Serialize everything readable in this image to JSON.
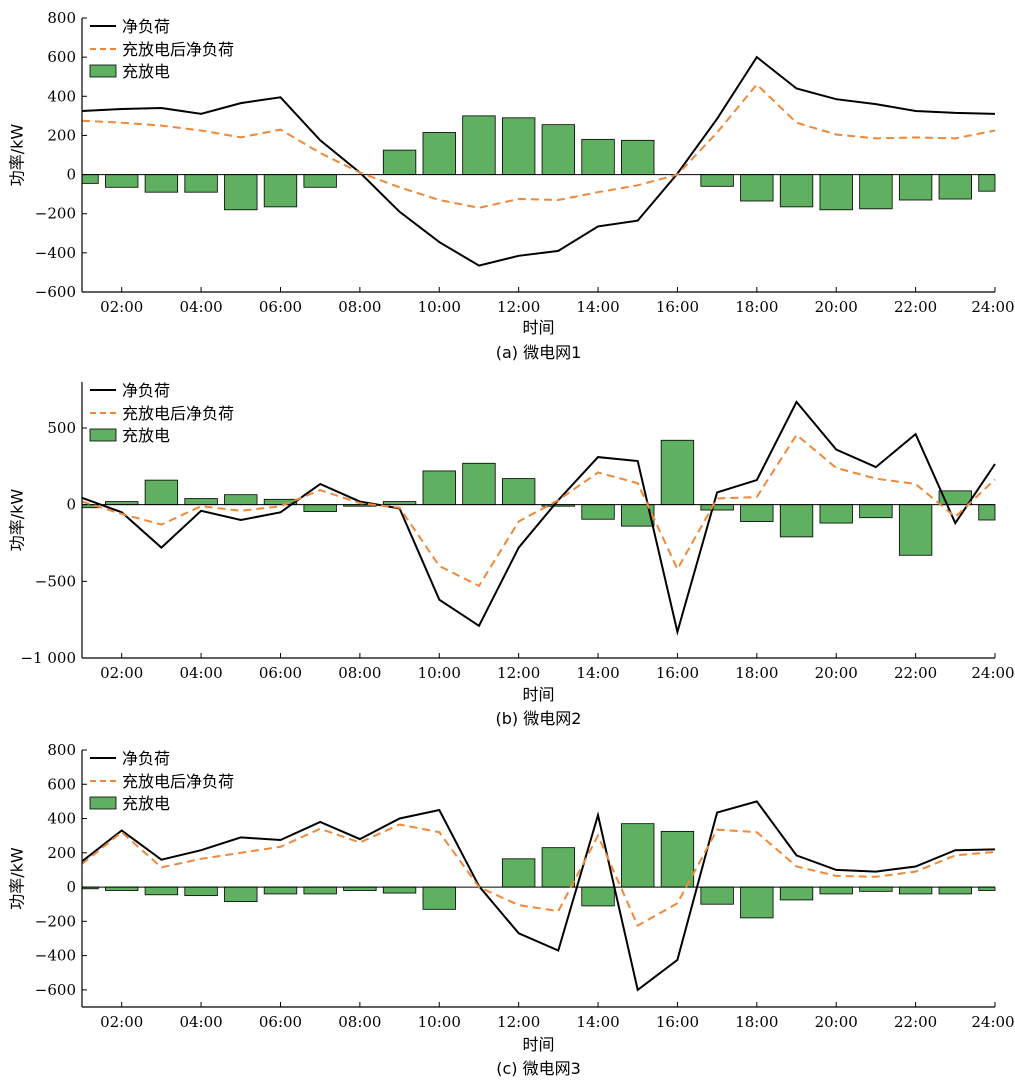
{
  "colors": {
    "net_load": "#000000",
    "after": "#f0883a",
    "bar_fill": "#5fb060",
    "bar_stroke": "#000000"
  },
  "legend": {
    "net_load": "净负荷",
    "after": "充放电后净负荷",
    "bars": "充放电"
  },
  "chart_data": [
    {
      "type": "bar",
      "caption": "(a) 微电网1",
      "xlabel": "时间",
      "ylabel": "功率/kW",
      "xlim": [
        1,
        24
      ],
      "ylim": [
        -600,
        800
      ],
      "yticks": [
        -600,
        -400,
        -200,
        0,
        200,
        400,
        600,
        800
      ],
      "ytick_labels": [
        "−600",
        "−400",
        "−200",
        "0",
        "200",
        "400",
        "600",
        "800"
      ],
      "xticks": [
        2,
        4,
        6,
        8,
        10,
        12,
        14,
        16,
        18,
        20,
        22,
        24
      ],
      "xtick_labels": [
        "02:00",
        "04:00",
        "06:00",
        "08:00",
        "10:00",
        "12:00",
        "14:00",
        "16:00",
        "18:00",
        "20:00",
        "22:00",
        "24:00"
      ],
      "x": [
        1,
        2,
        3,
        4,
        5,
        6,
        7,
        8,
        9,
        10,
        11,
        12,
        13,
        14,
        15,
        16,
        17,
        18,
        19,
        20,
        21,
        22,
        23,
        24
      ],
      "series": [
        {
          "name": "净负荷",
          "kind": "line",
          "values": [
            325,
            335,
            340,
            310,
            365,
            395,
            175,
            10,
            -190,
            -345,
            -465,
            -415,
            -390,
            -265,
            -235,
            5,
            285,
            600,
            440,
            385,
            360,
            325,
            315,
            310
          ]
        },
        {
          "name": "充放电后净负荷",
          "kind": "dashed",
          "values": [
            275,
            265,
            250,
            225,
            190,
            230,
            110,
            10,
            -65,
            -130,
            -170,
            -125,
            -130,
            -90,
            -55,
            0,
            215,
            460,
            265,
            205,
            185,
            190,
            185,
            225
          ]
        },
        {
          "name": "充放电",
          "kind": "bar",
          "values": [
            -45,
            -65,
            -90,
            -90,
            -180,
            -165,
            -65,
            0,
            125,
            215,
            300,
            290,
            255,
            180,
            175,
            0,
            -60,
            -135,
            -165,
            -180,
            -175,
            -130,
            -125,
            -85
          ]
        }
      ]
    },
    {
      "type": "bar",
      "caption": "(b) 微电网2",
      "xlabel": "时间",
      "ylabel": "功率/kW",
      "xlim": [
        1,
        24
      ],
      "ylim": [
        -1000,
        800
      ],
      "yticks": [
        -1000,
        -500,
        0,
        500
      ],
      "ytick_labels": [
        "−1 000",
        "−500",
        "0",
        "500"
      ],
      "xticks": [
        2,
        4,
        6,
        8,
        10,
        12,
        14,
        16,
        18,
        20,
        22,
        24
      ],
      "xtick_labels": [
        "02:00",
        "04:00",
        "06:00",
        "08:00",
        "10:00",
        "12:00",
        "14:00",
        "16:00",
        "18:00",
        "20:00",
        "22:00",
        "24:00"
      ],
      "x": [
        1,
        2,
        3,
        4,
        5,
        6,
        7,
        8,
        9,
        10,
        11,
        12,
        13,
        14,
        15,
        16,
        17,
        18,
        19,
        20,
        21,
        22,
        23,
        24
      ],
      "series": [
        {
          "name": "净负荷",
          "kind": "line",
          "values": [
            45,
            -50,
            -280,
            -40,
            -100,
            -50,
            135,
            20,
            -25,
            -620,
            -790,
            -280,
            30,
            310,
            285,
            -830,
            80,
            160,
            670,
            360,
            245,
            460,
            -120,
            265
          ]
        },
        {
          "name": "充放电后净负荷",
          "kind": "dashed",
          "values": [
            20,
            -60,
            -130,
            -10,
            -40,
            -10,
            95,
            10,
            -20,
            -400,
            -530,
            -110,
            30,
            210,
            140,
            -420,
            40,
            50,
            455,
            240,
            170,
            135,
            -80,
            165
          ]
        },
        {
          "name": "充放电",
          "kind": "bar",
          "values": [
            -20,
            20,
            160,
            40,
            65,
            35,
            -45,
            -10,
            20,
            220,
            270,
            170,
            -10,
            -95,
            -140,
            420,
            -35,
            -110,
            -210,
            -120,
            -85,
            -330,
            90,
            -100
          ]
        }
      ]
    },
    {
      "type": "bar",
      "caption": "(c) 微电网3",
      "xlabel": "时间",
      "ylabel": "功率/kW",
      "xlim": [
        1,
        24
      ],
      "ylim": [
        -700,
        800
      ],
      "yticks": [
        -600,
        -400,
        -200,
        0,
        200,
        400,
        600,
        800
      ],
      "ytick_labels": [
        "−600",
        "−400",
        "−200",
        "0",
        "200",
        "400",
        "600",
        "800"
      ],
      "xticks": [
        2,
        4,
        6,
        8,
        10,
        12,
        14,
        16,
        18,
        20,
        22,
        24
      ],
      "xtick_labels": [
        "02:00",
        "04:00",
        "06:00",
        "08:00",
        "10:00",
        "12:00",
        "14:00",
        "16:00",
        "18:00",
        "20:00",
        "22:00",
        "24:00"
      ],
      "x": [
        1,
        2,
        3,
        4,
        5,
        6,
        7,
        8,
        9,
        10,
        11,
        12,
        13,
        13.5,
        14,
        15,
        16,
        17,
        18,
        19,
        20,
        21,
        22,
        23,
        24
      ],
      "series": [
        {
          "name": "净负荷",
          "kind": "line",
          "x": [
            1,
            2,
            3,
            4,
            5,
            6,
            7,
            8,
            9,
            10,
            11,
            12,
            13,
            14,
            15,
            16,
            17,
            18,
            19,
            20,
            21,
            22,
            23,
            24
          ],
          "values": [
            150,
            330,
            160,
            215,
            290,
            275,
            380,
            280,
            400,
            450,
            5,
            -270,
            -370,
            420,
            -600,
            -425,
            435,
            500,
            185,
            100,
            90,
            120,
            215,
            220
          ]
        },
        {
          "name": "充放电后净负荷",
          "kind": "dashed",
          "x": [
            1,
            2,
            3,
            4,
            5,
            6,
            7,
            8,
            9,
            10,
            11,
            12,
            13,
            14,
            15,
            16,
            17,
            18,
            19,
            20,
            21,
            22,
            23,
            24
          ],
          "values": [
            135,
            320,
            115,
            165,
            200,
            235,
            340,
            260,
            365,
            320,
            0,
            -105,
            -140,
            300,
            -225,
            -95,
            335,
            320,
            120,
            65,
            60,
            90,
            185,
            205
          ]
        },
        {
          "name": "充放电",
          "kind": "bar",
          "x": [
            1,
            2,
            3,
            4,
            5,
            6,
            7,
            8,
            9,
            10,
            11,
            12,
            13,
            14,
            15,
            16,
            17,
            18,
            19,
            20,
            21,
            22,
            23,
            24
          ],
          "values": [
            -10,
            -20,
            -45,
            -50,
            -85,
            -40,
            -40,
            -20,
            -35,
            -130,
            0,
            165,
            230,
            -110,
            370,
            325,
            -100,
            -180,
            -75,
            -40,
            -25,
            -40,
            -40,
            -20
          ]
        }
      ]
    }
  ]
}
